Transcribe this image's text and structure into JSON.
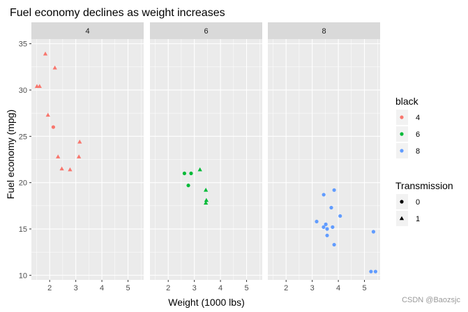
{
  "chart_data": {
    "type": "scatter",
    "title": "Fuel economy declines as weight increases",
    "xlabel": "Weight (1000 lbs)",
    "ylabel": "Fuel economy (mpg)",
    "xlim": [
      1.3,
      5.6
    ],
    "ylim": [
      9.5,
      35.5
    ],
    "x_ticks": [
      2,
      3,
      4,
      5
    ],
    "y_ticks": [
      10,
      15,
      20,
      25,
      30,
      35
    ],
    "grid": true,
    "facet_by": "cyl",
    "facets": [
      {
        "label": "4",
        "points": [
          {
            "wt": 1.835,
            "mpg": 33.9,
            "am": 1
          },
          {
            "wt": 2.2,
            "mpg": 32.4,
            "am": 1
          },
          {
            "wt": 1.513,
            "mpg": 30.4,
            "am": 1
          },
          {
            "wt": 1.615,
            "mpg": 30.4,
            "am": 1
          },
          {
            "wt": 1.935,
            "mpg": 27.3,
            "am": 1
          },
          {
            "wt": 2.14,
            "mpg": 26.0,
            "am": 0
          },
          {
            "wt": 3.15,
            "mpg": 24.4,
            "am": 1
          },
          {
            "wt": 2.32,
            "mpg": 22.8,
            "am": 1
          },
          {
            "wt": 3.12,
            "mpg": 22.8,
            "am": 1
          },
          {
            "wt": 2.465,
            "mpg": 21.5,
            "am": 1
          },
          {
            "wt": 2.78,
            "mpg": 21.4,
            "am": 1
          }
        ]
      },
      {
        "label": "6",
        "points": [
          {
            "wt": 2.62,
            "mpg": 21.0,
            "am": 0
          },
          {
            "wt": 2.875,
            "mpg": 21.0,
            "am": 0
          },
          {
            "wt": 3.215,
            "mpg": 21.4,
            "am": 1
          },
          {
            "wt": 2.77,
            "mpg": 19.7,
            "am": 0
          },
          {
            "wt": 3.44,
            "mpg": 19.2,
            "am": 1
          },
          {
            "wt": 3.46,
            "mpg": 18.1,
            "am": 1
          },
          {
            "wt": 3.44,
            "mpg": 17.8,
            "am": 1
          }
        ]
      },
      {
        "label": "8",
        "points": [
          {
            "wt": 3.44,
            "mpg": 18.7,
            "am": 0
          },
          {
            "wt": 3.84,
            "mpg": 19.2,
            "am": 0
          },
          {
            "wt": 3.73,
            "mpg": 17.3,
            "am": 0
          },
          {
            "wt": 4.07,
            "mpg": 16.4,
            "am": 0
          },
          {
            "wt": 3.17,
            "mpg": 15.8,
            "am": 0
          },
          {
            "wt": 3.52,
            "mpg": 15.5,
            "am": 0
          },
          {
            "wt": 3.435,
            "mpg": 15.2,
            "am": 0
          },
          {
            "wt": 3.57,
            "mpg": 15.0,
            "am": 0
          },
          {
            "wt": 3.78,
            "mpg": 15.2,
            "am": 0
          },
          {
            "wt": 3.57,
            "mpg": 14.3,
            "am": 0
          },
          {
            "wt": 5.345,
            "mpg": 14.7,
            "am": 0
          },
          {
            "wt": 3.84,
            "mpg": 13.3,
            "am": 0
          },
          {
            "wt": 5.25,
            "mpg": 10.4,
            "am": 0
          },
          {
            "wt": 5.424,
            "mpg": 10.4,
            "am": 0
          }
        ]
      }
    ],
    "legend_color": {
      "title": "black",
      "entries": [
        {
          "label": "4",
          "color": "#F8766D"
        },
        {
          "label": "6",
          "color": "#00BA38"
        },
        {
          "label": "8",
          "color": "#619CFF"
        }
      ]
    },
    "legend_shape": {
      "title": "Transmission",
      "entries": [
        {
          "label": "0",
          "shape": "circle"
        },
        {
          "label": "1",
          "shape": "triangle"
        }
      ]
    },
    "legend_placement": "right"
  },
  "colors": {
    "panel_bg": "#EBEBEB",
    "grid": "#FFFFFF",
    "strip_bg": "#D9D9D9"
  },
  "watermark": "CSDN @Baozsjc"
}
